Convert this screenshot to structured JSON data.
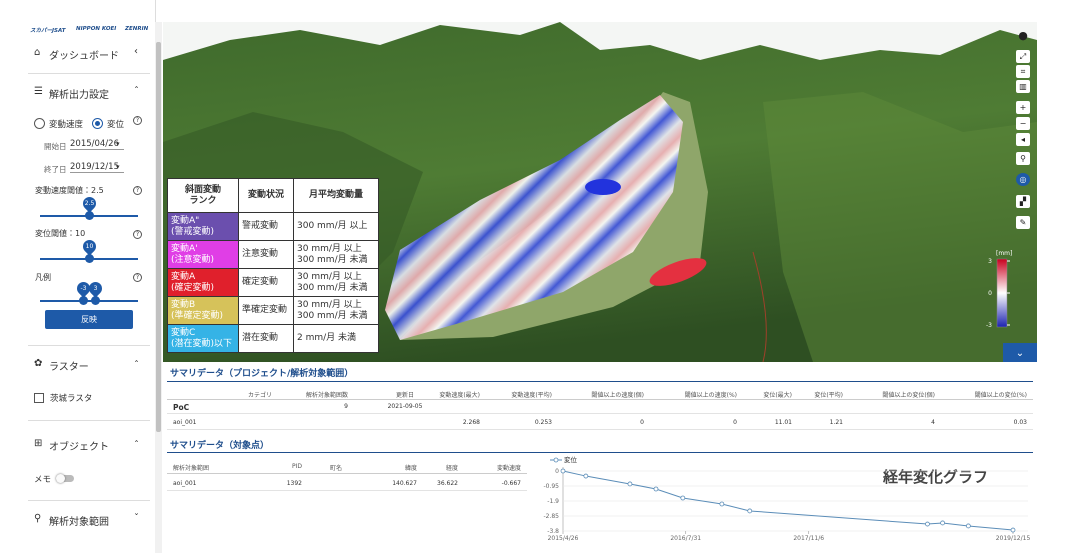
{
  "logos": [
    "スカパーJSAT",
    "NIPPON KOEI",
    "ZENRIN"
  ],
  "sidebar": {
    "dashboard": "ダッシュボード",
    "analysis_settings": {
      "title": "解析出力設定",
      "modes": [
        "変動速度",
        "変位"
      ],
      "selected_mode": 1,
      "start": {
        "label": "開始日",
        "value": "2015/04/26"
      },
      "end": {
        "label": "終了日",
        "value": "2019/12/15"
      },
      "velocity_threshold": {
        "label": "変動速度閾値：2.5",
        "value": 2.5
      },
      "displacement_threshold": {
        "label": "変位閾値：10",
        "value": 10
      },
      "legend_range": {
        "label": "凡例",
        "values": [
          -3,
          3
        ]
      },
      "apply": "反映"
    },
    "raster": {
      "title": "ラスター",
      "items": [
        "茨城ラスタ"
      ]
    },
    "object": {
      "title": "オブジェクト",
      "memo": "メモ"
    },
    "aoi": {
      "title": "解析対象範囲"
    }
  },
  "map": {
    "legend_table": {
      "headers": [
        "斜面変動\nランク",
        "変動状況",
        "月平均変動量"
      ],
      "rows": [
        {
          "rank": "変動A\"\n(警戒変動)",
          "color": "#6b4fae",
          "status": "警戒変動",
          "amount": "300 mm/月 以上"
        },
        {
          "rank": "変動A'\n(注意変動)",
          "color": "#e03ee6",
          "status": "注意変動",
          "amount": "30 mm/月 以上\n300 mm/月 未満"
        },
        {
          "rank": "変動A\n(確定変動)",
          "color": "#e0202c",
          "status": "確定変動",
          "amount": "30 mm/月 以上\n300 mm/月 未満"
        },
        {
          "rank": "変動B\n(準確定変動)",
          "color": "#d6c25a",
          "status": "準確定変動",
          "amount": "30 mm/月 以上\n300 mm/月 未満"
        },
        {
          "rank": "変動C\n(潜在変動)以下",
          "color": "#35b3e6",
          "status": "潜在変動",
          "amount": "2 mm/月 未満"
        }
      ]
    },
    "colorbar": {
      "unit": "[mm]",
      "ticks": [
        3,
        0,
        -3
      ]
    }
  },
  "summary_project": {
    "title": "サマリデータ（プロジェクト/解析対象範囲）",
    "headers": [
      null,
      "カテゴリ",
      "解析対象範囲数",
      "更新日",
      "変動速度(最大)",
      "変動速度(平均)",
      "閾値以上の速度(個)",
      "閾値以上の速度(%)",
      "変位(最大)",
      "変位(平均)",
      "閾値以上の変位(個)",
      "閾値以上の変位(%)"
    ],
    "rows": [
      [
        "PoC",
        null,
        9,
        "2021-09-05",
        null,
        null,
        null,
        null,
        null,
        null,
        null,
        null
      ],
      [
        "aoi_001",
        null,
        null,
        null,
        2.268,
        0.253,
        0,
        0,
        11.01,
        1.21,
        4,
        0.03
      ]
    ]
  },
  "summary_point": {
    "title": "サマリデータ（対象点）",
    "headers": [
      "解析対象範囲",
      "PID",
      "町名",
      "緯度",
      "経度",
      "変動速度"
    ],
    "rows": [
      [
        "aoi_001",
        1392,
        null,
        140.627,
        36.622,
        -0.667
      ]
    ]
  },
  "chart_data": {
    "type": "line",
    "annotation": "経年変化グラフ",
    "x": [
      "2015/4/26",
      "2015/7/21",
      "2016/1/3",
      "2016/4/10",
      "2016/7/20",
      "2016/12/14",
      "2017/3/29",
      "2019/1/27",
      "2019/3/25",
      "2019/6/30",
      "2019/12/15"
    ],
    "series": [
      {
        "name": "変位",
        "color": "#5b8db8",
        "values": [
          0,
          -0.32,
          -0.82,
          -1.14,
          -1.71,
          -2.09,
          -2.53,
          -3.36,
          -3.29,
          -3.48,
          -3.74
        ]
      }
    ],
    "xlim": [
      "2015/4/26",
      "2019/12/15"
    ],
    "xticks": [
      "2015/4/26",
      "2016/7/31",
      "2017/11/6",
      "2019/12/15"
    ],
    "ylim": [
      -3.8,
      0
    ],
    "yticks": [
      0,
      -0.95,
      -1.9,
      -2.85,
      -3.8
    ],
    "grid": true
  }
}
